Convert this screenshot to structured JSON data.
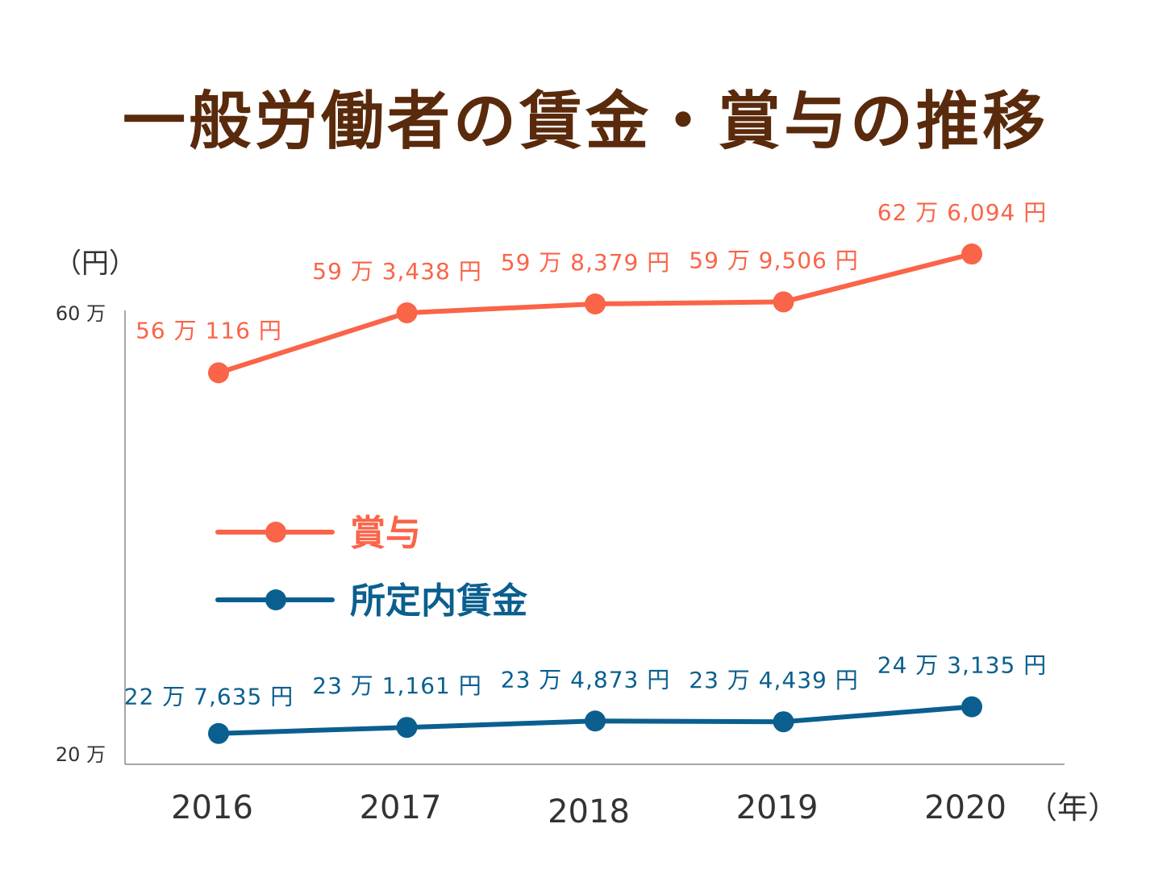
{
  "title": "一般労働者の賃金・賞与の推移",
  "colors": {
    "bonus": "#fa6448",
    "wage": "#0a5f8f",
    "title": "#5a2a0c",
    "axis": "#888888",
    "text": "#333333"
  },
  "chart_data": {
    "type": "line",
    "title": "一般労働者の賃金・賞与の推移",
    "y_unit_label": "（円）",
    "x_unit_label": "（年）",
    "x": [
      "2016",
      "2017",
      "2018",
      "2019",
      "2020"
    ],
    "y_ticks": [
      {
        "value": 200000,
        "label": "20 万"
      },
      {
        "value": 600000,
        "label": "60 万"
      }
    ],
    "ylim": [
      200000,
      600000
    ],
    "axis_break": true,
    "grid": false,
    "legend_position": "center-left",
    "series": [
      {
        "name": "賞与",
        "color_key": "bonus",
        "values": [
          560116,
          593438,
          598379,
          599506,
          626094
        ],
        "labels": [
          "56 万 116 円",
          "59 万 3,438 円",
          "59 万 8,379 円",
          "59 万 9,506 円",
          "62 万 6,094 円"
        ]
      },
      {
        "name": "所定内賃金",
        "color_key": "wage",
        "values": [
          227635,
          231161,
          234873,
          234439,
          243135
        ],
        "labels": [
          "22 万 7,635 円",
          "23 万 1,161 円",
          "23 万 4,873 円",
          "23 万 4,439 円",
          "24 万 3,135 円"
        ]
      }
    ]
  }
}
